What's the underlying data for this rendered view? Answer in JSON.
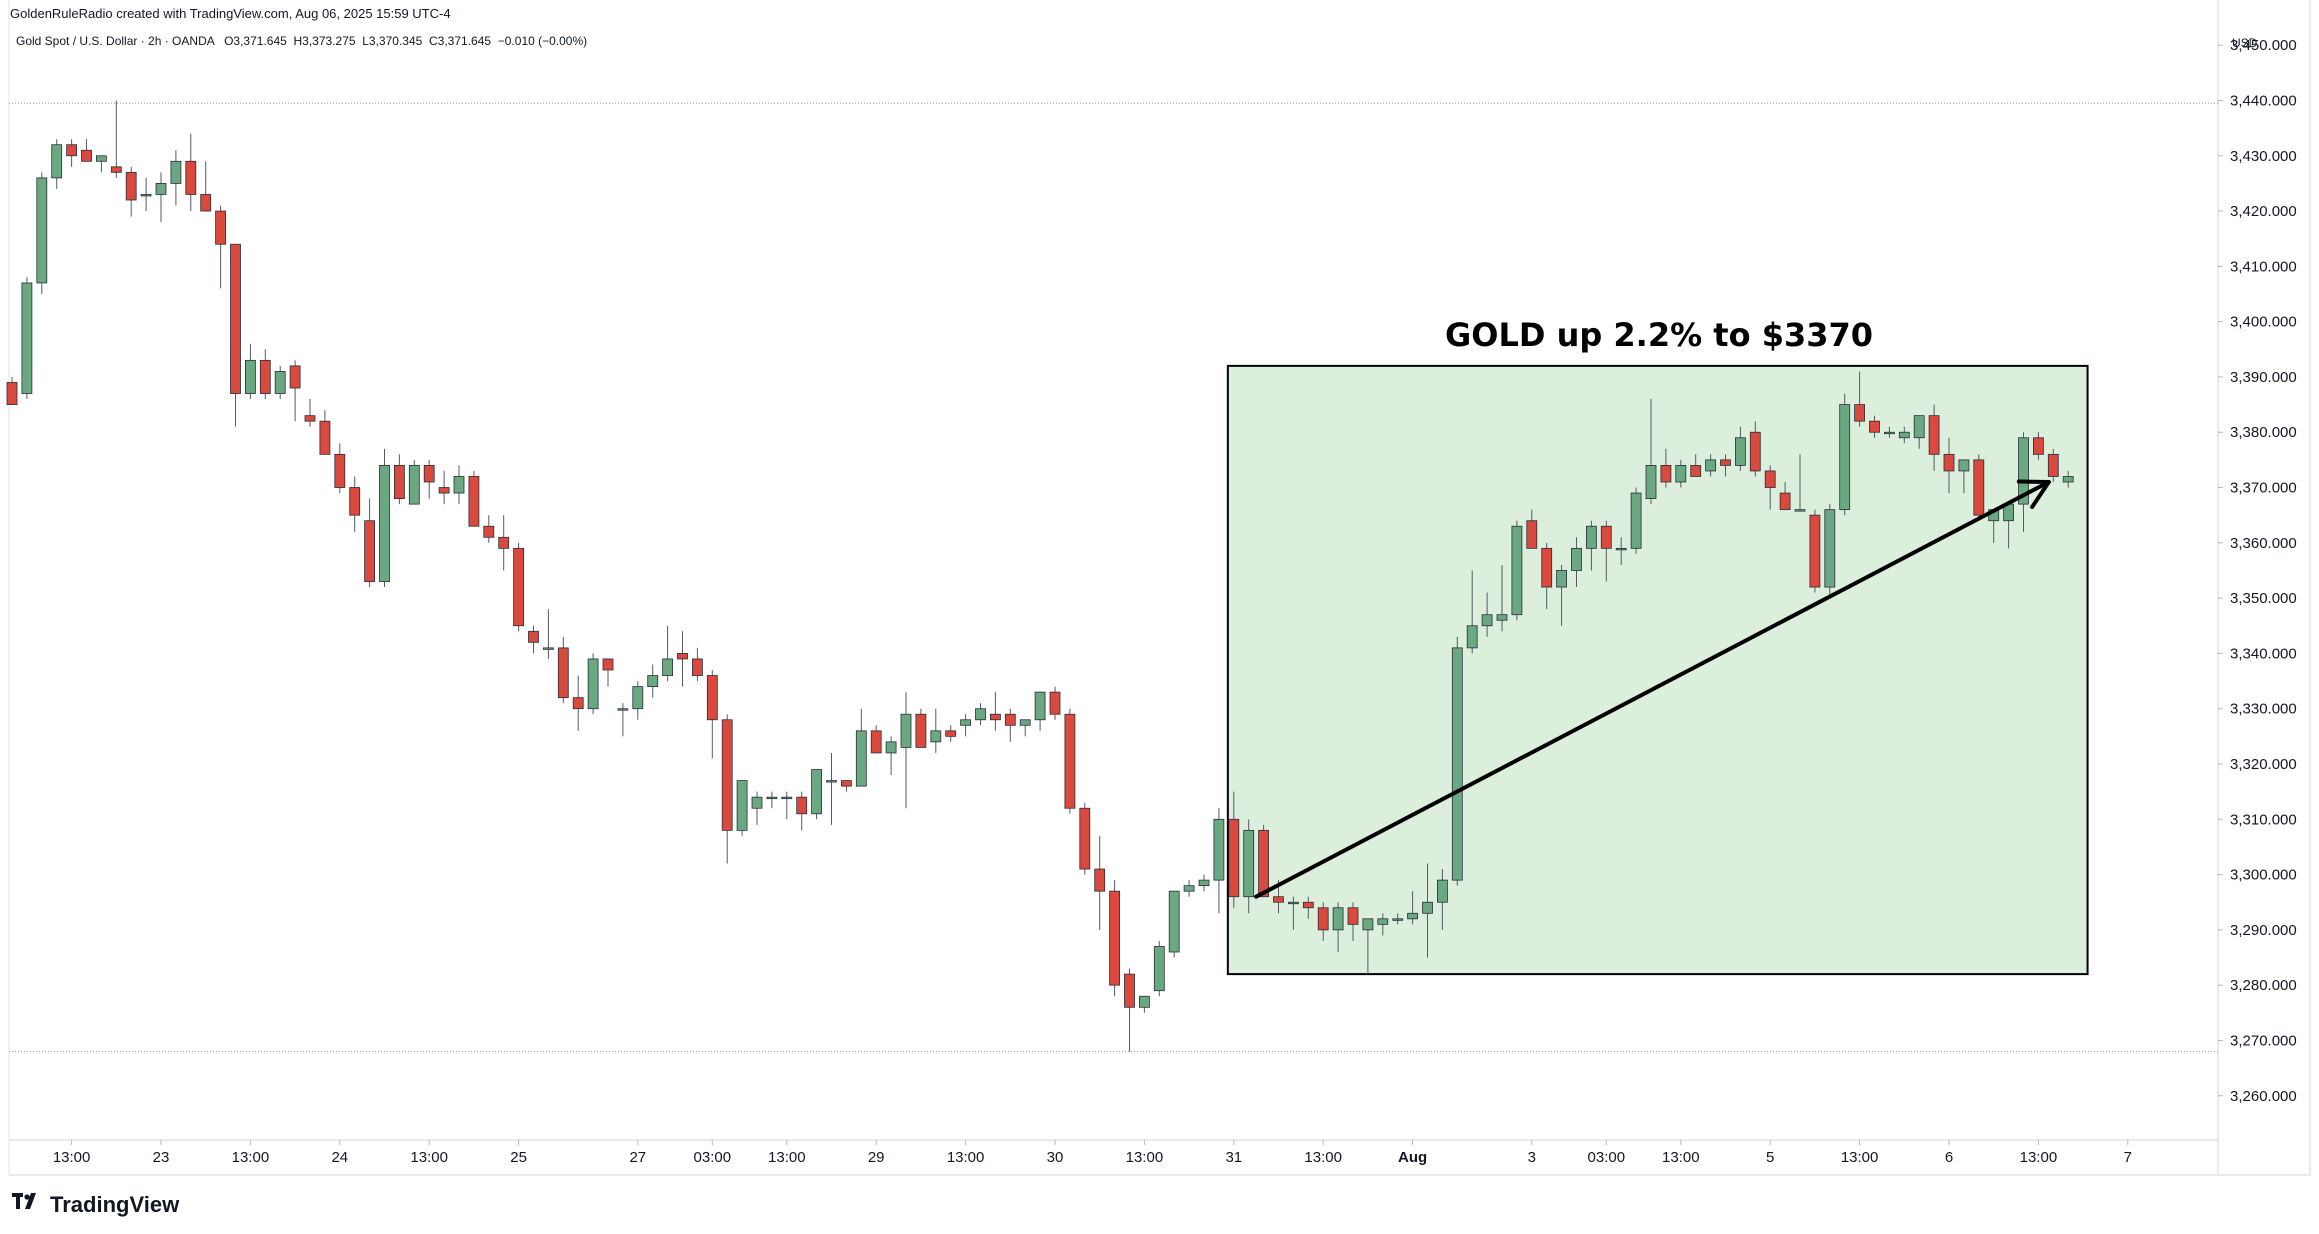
{
  "header": {
    "credit": "GoldenRuleRadio created with TradingView.com, Aug 06, 2025 15:59 UTC-4"
  },
  "legend": {
    "symbol": "Gold Spot / U.S. Dollar · 2h · OANDA",
    "open": "O3,371.645",
    "high": "H3,373.275",
    "low": "L3,370.345",
    "close": "C3,371.645",
    "change": "−0.010 (−0.00%)"
  },
  "brand": {
    "name": "TradingView",
    "logo_icon": "tradingview-logo-icon"
  },
  "colors": {
    "up": "#6aa882",
    "down": "#d9493d",
    "highlight_fill": "#dcefdc",
    "highlight_stroke": "#000000"
  },
  "chart_data": {
    "type": "candlestick",
    "title": "",
    "y_unit": "USD",
    "ylim": [
      3252,
      3456
    ],
    "y_ticks": [
      "3,450.000",
      "3,440.000",
      "3,430.000",
      "3,420.000",
      "3,410.000",
      "3,400.000",
      "3,390.000",
      "3,380.000",
      "3,370.000",
      "3,360.000",
      "3,350.000",
      "3,340.000",
      "3,330.000",
      "3,320.000",
      "3,310.000",
      "3,300.000",
      "3,290.000",
      "3,280.000",
      "3,270.000",
      "3,260.000"
    ],
    "x_ticks": [
      {
        "label": "13:00",
        "index": 4,
        "bold": false
      },
      {
        "label": "23",
        "index": 10,
        "bold": false
      },
      {
        "label": "13:00",
        "index": 16,
        "bold": false
      },
      {
        "label": "24",
        "index": 22,
        "bold": false
      },
      {
        "label": "13:00",
        "index": 28,
        "bold": false
      },
      {
        "label": "25",
        "index": 34,
        "bold": false
      },
      {
        "label": "27",
        "index": 42,
        "bold": false
      },
      {
        "label": "03:00",
        "index": 47,
        "bold": false
      },
      {
        "label": "13:00",
        "index": 52,
        "bold": false
      },
      {
        "label": "29",
        "index": 58,
        "bold": false
      },
      {
        "label": "13:00",
        "index": 64,
        "bold": false
      },
      {
        "label": "30",
        "index": 70,
        "bold": false
      },
      {
        "label": "13:00",
        "index": 76,
        "bold": false
      },
      {
        "label": "31",
        "index": 82,
        "bold": false
      },
      {
        "label": "13:00",
        "index": 88,
        "bold": false
      },
      {
        "label": "Aug",
        "index": 94,
        "bold": true
      },
      {
        "label": "3",
        "index": 102,
        "bold": false
      },
      {
        "label": "03:00",
        "index": 107,
        "bold": false
      },
      {
        "label": "13:00",
        "index": 112,
        "bold": false
      },
      {
        "label": "5",
        "index": 118,
        "bold": false
      },
      {
        "label": "13:00",
        "index": 124,
        "bold": false
      },
      {
        "label": "6",
        "index": 130,
        "bold": false
      },
      {
        "label": "13:00",
        "index": 136,
        "bold": false
      },
      {
        "label": "7",
        "index": 142,
        "bold": false
      }
    ],
    "reference_lines": [
      3439.5,
      3268.0
    ],
    "candles": [
      [
        3389,
        3390,
        3385,
        3385
      ],
      [
        3387,
        3408,
        3386,
        3407
      ],
      [
        3407,
        3427,
        3405,
        3426
      ],
      [
        3426,
        3433,
        3424,
        3432
      ],
      [
        3432,
        3433,
        3428,
        3430
      ],
      [
        3431,
        3433,
        3429,
        3429
      ],
      [
        3429,
        3430,
        3427,
        3430
      ],
      [
        3428,
        3440,
        3426,
        3427
      ],
      [
        3427,
        3428,
        3419,
        3422
      ],
      [
        3423,
        3426,
        3420,
        3423
      ],
      [
        3423,
        3427,
        3418,
        3425
      ],
      [
        3425,
        3431,
        3421,
        3429
      ],
      [
        3429,
        3434,
        3420,
        3423
      ],
      [
        3423,
        3429,
        3420,
        3420
      ],
      [
        3420,
        3421,
        3406,
        3414
      ],
      [
        3414,
        3414,
        3381,
        3387
      ],
      [
        3387,
        3396,
        3386,
        3393
      ],
      [
        3393,
        3395,
        3386,
        3387
      ],
      [
        3387,
        3392,
        3386,
        3391
      ],
      [
        3392,
        3393,
        3382,
        3388
      ],
      [
        3383,
        3386,
        3381,
        3382
      ],
      [
        3382,
        3384,
        3376,
        3376
      ],
      [
        3376,
        3378,
        3369,
        3370
      ],
      [
        3370,
        3372,
        3362,
        3365
      ],
      [
        3364,
        3368,
        3352,
        3353
      ],
      [
        3353,
        3377,
        3352,
        3374
      ],
      [
        3374,
        3376,
        3367,
        3368
      ],
      [
        3367,
        3375,
        3367,
        3374
      ],
      [
        3374,
        3375,
        3368,
        3371
      ],
      [
        3370,
        3373,
        3367,
        3369
      ],
      [
        3369,
        3374,
        3367,
        3372
      ],
      [
        3372,
        3373,
        3364,
        3363
      ],
      [
        3363,
        3365,
        3360,
        3361
      ],
      [
        3361,
        3365,
        3355,
        3359
      ],
      [
        3359,
        3360,
        3344,
        3345
      ],
      [
        3344,
        3345,
        3340,
        3342
      ],
      [
        3341,
        3348,
        3339,
        3341
      ],
      [
        3341,
        3343,
        3331,
        3332
      ],
      [
        3332,
        3336,
        3326,
        3330
      ],
      [
        3330,
        3340,
        3329,
        3339
      ],
      [
        3339,
        3339,
        3334,
        3337
      ],
      [
        3330,
        3331,
        3325,
        3330
      ],
      [
        3330,
        3335,
        3328,
        3334
      ],
      [
        3334,
        3338,
        3332,
        3336
      ],
      [
        3336,
        3345,
        3335,
        3339
      ],
      [
        3340,
        3344,
        3334,
        3339
      ],
      [
        3339,
        3341,
        3335,
        3336
      ],
      [
        3336,
        3337,
        3321,
        3328
      ],
      [
        3328,
        3329,
        3302,
        3308
      ],
      [
        3308,
        3316,
        3307,
        3317
      ],
      [
        3312,
        3315,
        3309,
        3314
      ],
      [
        3314,
        3315,
        3312,
        3314
      ],
      [
        3314,
        3315,
        3310,
        3314
      ],
      [
        3314,
        3315,
        3308,
        3311
      ],
      [
        3311,
        3319,
        3310,
        3319
      ],
      [
        3317,
        3322,
        3309,
        3317
      ],
      [
        3317,
        3317,
        3315,
        3316
      ],
      [
        3316,
        3330,
        3316,
        3326
      ],
      [
        3326,
        3327,
        3322,
        3322
      ],
      [
        3322,
        3325,
        3318,
        3324
      ],
      [
        3323,
        3333,
        3312,
        3329
      ],
      [
        3329,
        3330,
        3323,
        3323
      ],
      [
        3324,
        3330,
        3322,
        3326
      ],
      [
        3326,
        3327,
        3324,
        3325
      ],
      [
        3327,
        3329,
        3325,
        3328
      ],
      [
        3328,
        3331,
        3327,
        3330
      ],
      [
        3329,
        3333,
        3326,
        3328
      ],
      [
        3329,
        3330,
        3324,
        3327
      ],
      [
        3327,
        3328,
        3325,
        3328
      ],
      [
        3328,
        3333,
        3326,
        3333
      ],
      [
        3333,
        3334,
        3328,
        3329
      ],
      [
        3329,
        3330,
        3311,
        3312
      ],
      [
        3312,
        3313,
        3300,
        3301
      ],
      [
        3301,
        3307,
        3290,
        3297
      ],
      [
        3297,
        3299,
        3278,
        3280
      ],
      [
        3282,
        3283,
        3268,
        3276
      ],
      [
        3276,
        3278,
        3275,
        3278
      ],
      [
        3279,
        3288,
        3278,
        3287
      ],
      [
        3286,
        3297,
        3285,
        3297
      ],
      [
        3297,
        3299,
        3296,
        3298
      ],
      [
        3298,
        3300,
        3297,
        3299
      ],
      [
        3299,
        3312,
        3293,
        3310
      ],
      [
        3310,
        3315,
        3294,
        3296
      ],
      [
        3296,
        3310,
        3293,
        3308
      ],
      [
        3308,
        3309,
        3296,
        3296
      ],
      [
        3296,
        3299,
        3293,
        3295
      ],
      [
        3295,
        3296,
        3290,
        3295
      ],
      [
        3295,
        3296,
        3292,
        3294
      ],
      [
        3294,
        3295,
        3288,
        3290
      ],
      [
        3290,
        3295,
        3286,
        3294
      ],
      [
        3294,
        3295,
        3288,
        3291
      ],
      [
        3290,
        3292,
        3282,
        3292
      ],
      [
        3291,
        3293,
        3289,
        3292
      ],
      [
        3292,
        3293,
        3291,
        3292
      ],
      [
        3292,
        3297,
        3291,
        3293
      ],
      [
        3293,
        3302,
        3285,
        3295
      ],
      [
        3295,
        3301,
        3290,
        3299
      ],
      [
        3299,
        3343,
        3298,
        3341
      ],
      [
        3341,
        3355,
        3340,
        3345
      ],
      [
        3345,
        3351,
        3343,
        3347
      ],
      [
        3346,
        3356,
        3344,
        3347
      ],
      [
        3347,
        3364,
        3346,
        3363
      ],
      [
        3364,
        3366,
        3359,
        3359
      ],
      [
        3359,
        3360,
        3348,
        3352
      ],
      [
        3352,
        3356,
        3345,
        3355
      ],
      [
        3355,
        3361,
        3352,
        3359
      ],
      [
        3359,
        3364,
        3355,
        3363
      ],
      [
        3363,
        3364,
        3353,
        3359
      ],
      [
        3359,
        3361,
        3356,
        3359
      ],
      [
        3359,
        3370,
        3358,
        3369
      ],
      [
        3368,
        3386,
        3367,
        3374
      ],
      [
        3374,
        3377,
        3370,
        3371
      ],
      [
        3371,
        3375,
        3370,
        3374
      ],
      [
        3374,
        3376,
        3372,
        3372
      ],
      [
        3373,
        3376,
        3372,
        3375
      ],
      [
        3375,
        3376,
        3372,
        3374
      ],
      [
        3374,
        3381,
        3373,
        3379
      ],
      [
        3380,
        3382,
        3372,
        3373
      ],
      [
        3373,
        3374,
        3366,
        3370
      ],
      [
        3369,
        3371,
        3366,
        3366
      ],
      [
        3366,
        3376,
        3366,
        3366
      ],
      [
        3365,
        3366,
        3351,
        3352
      ],
      [
        3352,
        3367,
        3350,
        3366
      ],
      [
        3366,
        3387,
        3365,
        3385
      ],
      [
        3385,
        3391,
        3381,
        3382
      ],
      [
        3382,
        3383,
        3379,
        3380
      ],
      [
        3380,
        3381,
        3379,
        3380
      ],
      [
        3379,
        3381,
        3378,
        3380
      ],
      [
        3379,
        3383,
        3377,
        3383
      ],
      [
        3383,
        3385,
        3373,
        3376
      ],
      [
        3376,
        3379,
        3369,
        3373
      ],
      [
        3373,
        3375,
        3369,
        3375
      ],
      [
        3375,
        3376,
        3364,
        3365
      ],
      [
        3364,
        3366,
        3360,
        3366
      ],
      [
        3364,
        3367,
        3359,
        3367
      ],
      [
        3367,
        3380,
        3362,
        3379
      ],
      [
        3379,
        3380,
        3375,
        3376
      ],
      [
        3376,
        3377,
        3371,
        3372
      ],
      [
        3371,
        3373,
        3370,
        3372
      ]
    ]
  },
  "annotation": {
    "text": "GOLD up 2.2% to $3370",
    "box_x_range": [
      81.6,
      139.3
    ],
    "box_price_range": [
      3282,
      3392
    ],
    "arrow": {
      "from": [
        83.5,
        3296
      ],
      "to": [
        136.7,
        3371
      ]
    }
  }
}
